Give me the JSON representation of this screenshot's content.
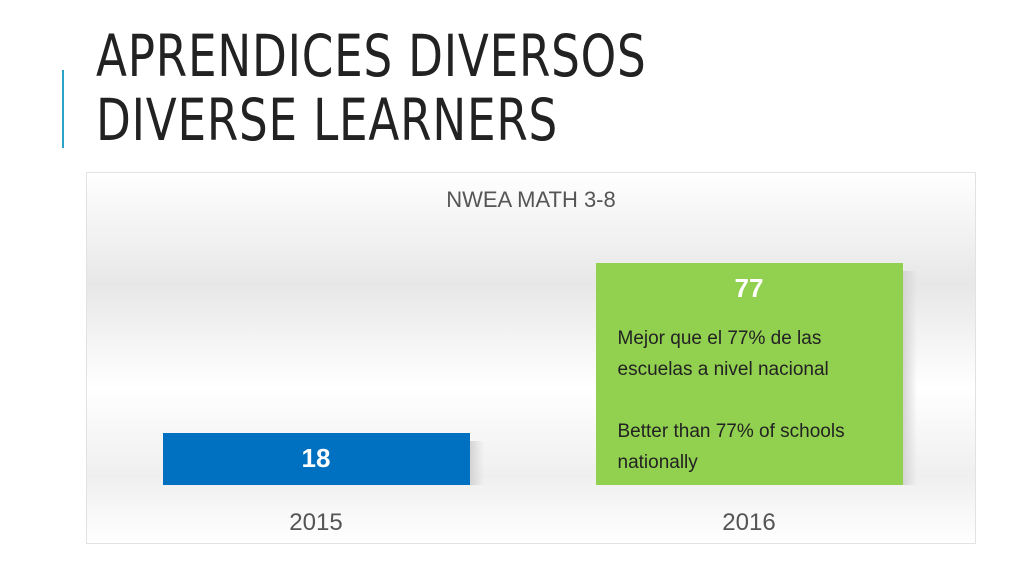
{
  "slide": {
    "title_line1": "APRENDICES DIVERSOS",
    "title_line2": "DIVERSE LEARNERS",
    "accent_color": "#2aa3c7"
  },
  "chart_data": {
    "type": "bar",
    "title": "NWEA MATH 3-8",
    "categories": [
      "2015",
      "2016"
    ],
    "values": [
      18,
      77
    ],
    "data_labels": [
      "18",
      "77"
    ],
    "colors": [
      "#0070c0",
      "#92d050"
    ],
    "ylim": [
      0,
      100
    ],
    "grid": false,
    "legend": "none",
    "annotations": [
      {
        "category": "2016",
        "lines": [
          "Mejor que el 77% de las",
          "escuelas a nivel nacional",
          "",
          "Better than 77% of schools",
          "nationally"
        ]
      }
    ]
  }
}
